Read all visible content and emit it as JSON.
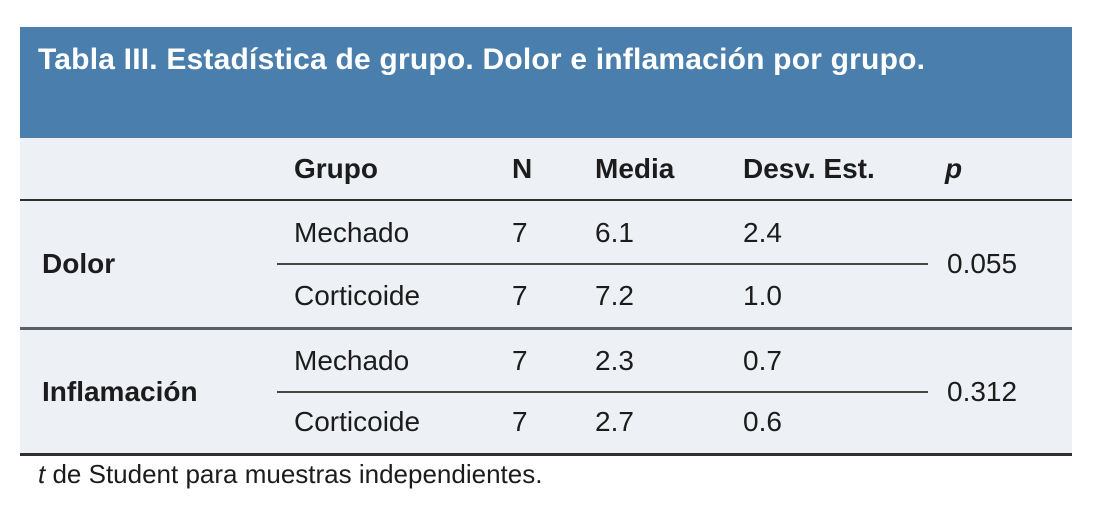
{
  "table": {
    "title": "Tabla III. Estadística de grupo. Dolor e inflamación por grupo.",
    "columns": [
      "Grupo",
      "N",
      "Media",
      "Desv. Est.",
      "p"
    ],
    "sections": [
      {
        "label": "Dolor",
        "p": "0.055",
        "rows": [
          [
            "Mechado",
            "7",
            "6.1",
            "2.4"
          ],
          [
            "Corticoide",
            "7",
            "7.2",
            "1.0"
          ]
        ]
      },
      {
        "label": "Inflamación",
        "p": "0.312",
        "rows": [
          [
            "Mechado",
            "7",
            "2.3",
            "0.7"
          ],
          [
            "Corticoide",
            "7",
            "2.7",
            "0.6"
          ]
        ]
      }
    ],
    "footnote": {
      "lead": "t",
      "rest": " de Student para muestras independientes."
    },
    "colors": {
      "header_bg": "#4a7eac",
      "header_text": "#ffffff",
      "body_bg": "#edf0f5",
      "text": "#1c1c1c",
      "rule_dark": "#2f2f2f",
      "rule_section": "#5a5f66",
      "rule_subrow": "#454545"
    }
  }
}
